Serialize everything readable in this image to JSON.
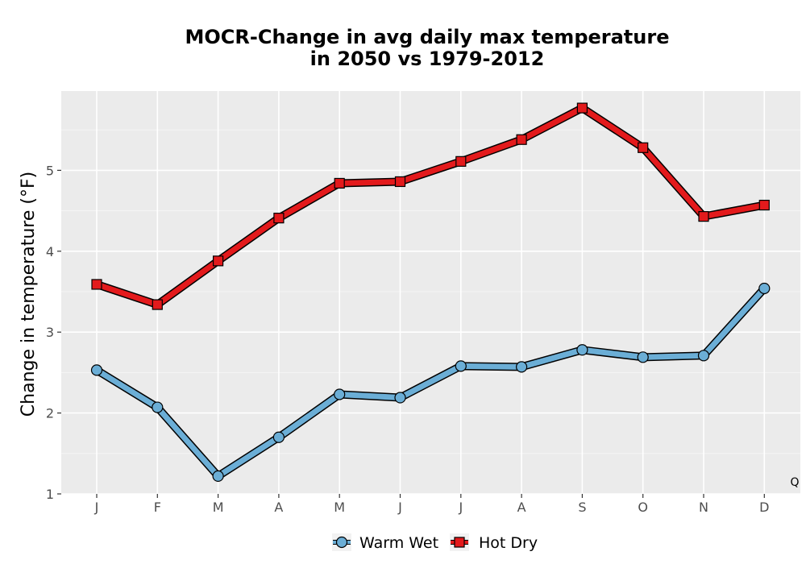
{
  "chart_data": {
    "type": "line",
    "title_line1": "MOCR-Change in avg daily max temperature",
    "title_line2": "in 2050 vs 1979-2012",
    "xlabel": "",
    "ylabel": "Change in temperature (°F)",
    "categories": [
      "J",
      "F",
      "M",
      "A",
      "M",
      "J",
      "J",
      "A",
      "S",
      "O",
      "N",
      "D"
    ],
    "ylim": [
      1,
      5.98
    ],
    "yticks": [
      1,
      2,
      3,
      4,
      5
    ],
    "grid": true,
    "legend_position": "bottom",
    "corner_note": "Q",
    "series": [
      {
        "name": "Warm Wet",
        "marker": "circle",
        "color": "#6baed6",
        "values": [
          2.53,
          2.07,
          1.22,
          1.7,
          2.23,
          2.19,
          2.58,
          2.57,
          2.78,
          2.69,
          2.71,
          3.54
        ]
      },
      {
        "name": "Hot Dry",
        "marker": "square",
        "color": "#e31a1c",
        "values": [
          3.59,
          3.34,
          3.88,
          4.41,
          4.84,
          4.86,
          5.11,
          5.38,
          5.77,
          5.28,
          4.43,
          4.57
        ]
      }
    ]
  }
}
